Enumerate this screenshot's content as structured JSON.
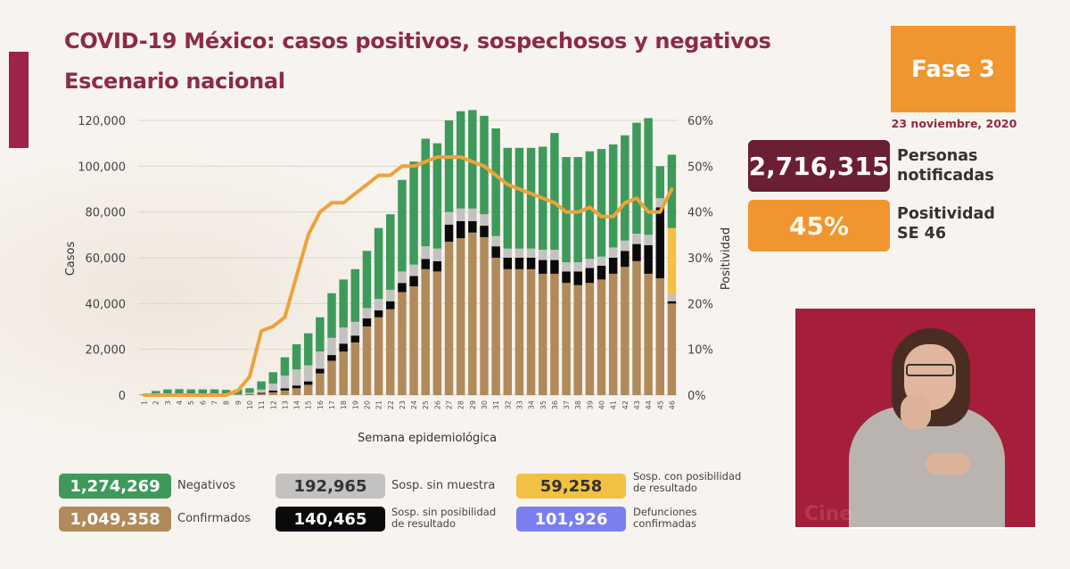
{
  "header": {
    "title": "COVID-19 México: casos positivos, sospechosos y negativos",
    "subtitle": "Escenario nacional",
    "phase": "Fase 3",
    "date": "23 noviembre, 2020"
  },
  "kpis": {
    "notified_value": "2,716,315",
    "notified_label_1": "Personas",
    "notified_label_2": "notificadas",
    "positivity_value": "45%",
    "positivity_label_1": "Positividad",
    "positivity_label_2": "SE 46"
  },
  "colors": {
    "negativos": "#3d9a5b",
    "confirmados": "#b08a5b",
    "sosp_sin_muestra": "#c4c2c0",
    "sosp_sin_posibilidad": "#0a0a0a",
    "sosp_con_posibilidad": "#f2c043",
    "defunciones": "#7b7ef0",
    "positividad_line": "#eda23a",
    "title": "#8e2a45",
    "phase_box": "#f0952f",
    "notified_box": "#6a1f33"
  },
  "legend": [
    {
      "key": "negativos",
      "value": "1,274,269",
      "label_1": "Negativos",
      "label_2": ""
    },
    {
      "key": "confirmados",
      "value": "1,049,358",
      "label_1": "Confirmados",
      "label_2": ""
    },
    {
      "key": "sosp_sin_muestra",
      "value": "192,965",
      "label_1": "Sosp. sin muestra",
      "label_2": ""
    },
    {
      "key": "sosp_sin_posibilidad",
      "value": "140,465",
      "label_1": "Sosp. sin posibilidad",
      "label_2": "de resultado"
    },
    {
      "key": "sosp_con_posibilidad",
      "value": "59,258",
      "label_1": "Sosp. con posibilidad",
      "label_2": "de resultado"
    },
    {
      "key": "defunciones",
      "value": "101,926",
      "label_1": "Defunciones",
      "label_2": "confirmadas"
    }
  ],
  "video": {
    "watermark": "Cine"
  },
  "chart_data": {
    "type": "bar",
    "stacked": true,
    "title": "COVID-19 México: casos positivos, sospechosos y negativos",
    "xlabel": "Semana epidemiológica",
    "ylabel": "Casos",
    "y2label": "Positividad",
    "ylim": [
      0,
      120000
    ],
    "y2lim": [
      0,
      60
    ],
    "yticks": [
      "0",
      "20,000",
      "40,000",
      "60,000",
      "80,000",
      "100,000",
      "120,000"
    ],
    "y2ticks": [
      "0%",
      "10%",
      "20%",
      "30%",
      "40%",
      "50%",
      "60%"
    ],
    "grid": true,
    "categories": [
      "1",
      "2",
      "3",
      "4",
      "5",
      "6",
      "7",
      "8",
      "9",
      "10",
      "11",
      "12",
      "13",
      "14",
      "15",
      "16",
      "17",
      "18",
      "19",
      "20",
      "21",
      "22",
      "23",
      "24",
      "25",
      "26",
      "27",
      "28",
      "29",
      "30",
      "31",
      "32",
      "33",
      "34",
      "35",
      "36",
      "37",
      "38",
      "39",
      "40",
      "41",
      "42",
      "43",
      "44",
      "45",
      "46"
    ],
    "series": [
      {
        "name": "Confirmados",
        "key": "confirmados",
        "values": [
          0,
          0,
          0,
          0,
          0,
          0,
          0,
          0,
          0,
          200,
          600,
          1200,
          2000,
          3000,
          4500,
          9500,
          15000,
          19000,
          23000,
          30000,
          34000,
          37500,
          45000,
          47500,
          55000,
          54000,
          67000,
          68500,
          71000,
          69000,
          60000,
          55000,
          55000,
          55000,
          53000,
          53000,
          49000,
          48000,
          49000,
          50500,
          53000,
          56000,
          58500,
          53000,
          51000,
          40000
        ]
      },
      {
        "name": "Sosp. sin posibilidad de resultado",
        "key": "sosp_sin_posibilidad",
        "values": [
          0,
          0,
          0,
          0,
          0,
          0,
          0,
          0,
          0,
          100,
          400,
          800,
          1000,
          1200,
          1500,
          2000,
          2500,
          3500,
          3000,
          3500,
          3000,
          3500,
          4000,
          4500,
          4500,
          4500,
          7500,
          7500,
          5000,
          5000,
          5000,
          5000,
          5000,
          5000,
          6000,
          6000,
          5000,
          6000,
          6500,
          6000,
          7000,
          7000,
          7500,
          12500,
          31000,
          1000
        ]
      },
      {
        "name": "Sosp. sin muestra",
        "key": "sosp_sin_muestra",
        "values": [
          0,
          0,
          0,
          0,
          0,
          0,
          0,
          0,
          200,
          700,
          1400,
          3000,
          5500,
          7000,
          7000,
          7500,
          7500,
          7000,
          6000,
          4500,
          5000,
          5000,
          5000,
          5000,
          5500,
          5500,
          5500,
          5500,
          5500,
          5000,
          4500,
          4000,
          4000,
          4000,
          4500,
          4500,
          4000,
          4000,
          4000,
          4000,
          4500,
          4500,
          4500,
          4500,
          4000,
          3000
        ]
      },
      {
        "name": "Sosp. con posibilidad de resultado",
        "key": "sosp_con_posibilidad",
        "values": [
          0,
          0,
          0,
          0,
          0,
          0,
          0,
          0,
          0,
          0,
          0,
          0,
          0,
          0,
          0,
          0,
          0,
          0,
          0,
          0,
          0,
          0,
          0,
          0,
          0,
          0,
          0,
          0,
          0,
          0,
          0,
          0,
          0,
          0,
          0,
          0,
          0,
          0,
          0,
          0,
          0,
          0,
          0,
          0,
          0,
          29000
        ]
      },
      {
        "name": "Negativos",
        "key": "negativos",
        "values": [
          300,
          1800,
          2500,
          2600,
          2500,
          2500,
          2500,
          2300,
          2200,
          2000,
          3600,
          5000,
          8000,
          11000,
          14000,
          15000,
          19500,
          21000,
          23000,
          25000,
          31000,
          33000,
          40000,
          45000,
          47000,
          46000,
          40000,
          42500,
          43000,
          43000,
          47000,
          44000,
          44000,
          44000,
          45000,
          51000,
          46000,
          46000,
          47000,
          47000,
          45000,
          46000,
          48500,
          51000,
          14000,
          32000
        ]
      },
      {
        "name": "Positividad",
        "key": "positividad",
        "axis": "y2",
        "type": "line",
        "values": [
          0,
          0,
          0,
          0,
          0,
          0,
          0,
          0,
          1,
          4,
          14,
          15,
          17,
          26,
          35,
          40,
          42,
          42,
          44,
          46,
          48,
          48,
          50,
          50,
          51,
          52,
          52,
          52,
          51,
          50,
          48,
          46,
          45,
          44,
          43,
          42,
          40,
          40,
          41,
          39,
          39,
          42,
          43,
          40,
          40,
          45
        ]
      }
    ],
    "legend_position": "bottom"
  }
}
